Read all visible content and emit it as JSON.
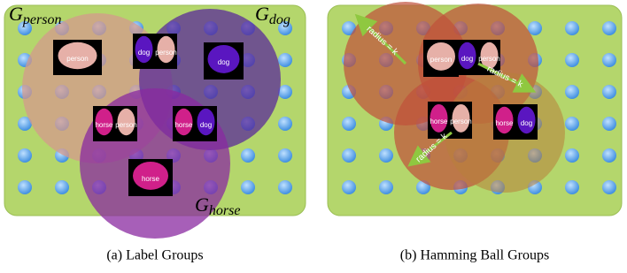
{
  "panels": [
    {
      "caption": "(a) Label Groups",
      "groups": [
        {
          "symbol": "G",
          "subscript": "person"
        },
        {
          "symbol": "G",
          "subscript": "dog"
        },
        {
          "symbol": "G",
          "subscript": "horse"
        }
      ],
      "images": [
        {
          "labels": [
            "person"
          ]
        },
        {
          "labels": [
            "dog",
            "person"
          ]
        },
        {
          "labels": [
            "dog"
          ]
        },
        {
          "labels": [
            "horse",
            "person"
          ]
        },
        {
          "labels": [
            "horse",
            "dog"
          ]
        },
        {
          "labels": [
            "horse"
          ]
        }
      ]
    },
    {
      "caption": "(b) Hamming Ball Groups",
      "radius_labels": [
        "radius = k",
        "radius = k",
        "radius = k"
      ],
      "images": [
        {
          "labels": [
            "person"
          ]
        },
        {
          "labels": [
            "dog",
            "person"
          ]
        },
        {
          "labels": [
            "horse",
            "person"
          ]
        },
        {
          "labels": [
            "horse",
            "dog"
          ]
        }
      ]
    }
  ]
}
